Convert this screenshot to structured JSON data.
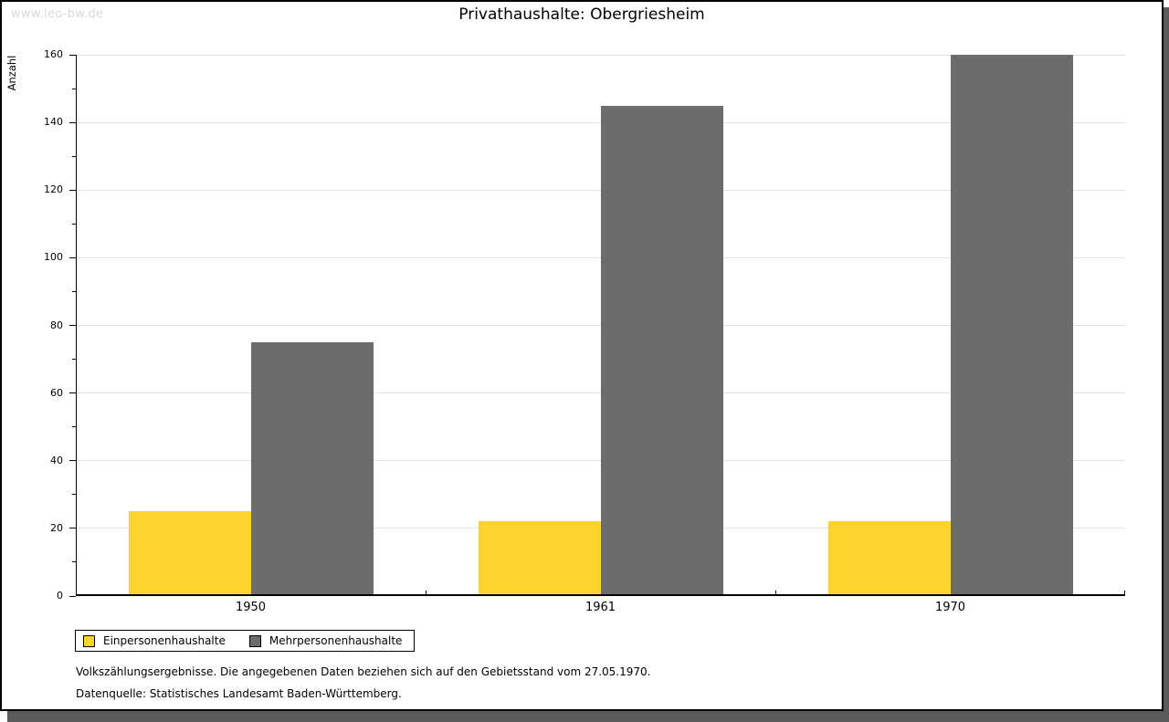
{
  "watermark": "www.leo-bw.de",
  "chart_data": {
    "type": "bar",
    "title": "Privathaushalte: Obergriesheim",
    "ylabel": "Anzahl",
    "xlabel": "",
    "categories": [
      "1950",
      "1961",
      "1970"
    ],
    "series": [
      {
        "name": "Einpersonenhaushalte",
        "color": "#FCD22C",
        "values": [
          25,
          22,
          22
        ]
      },
      {
        "name": "Mehrpersonenhaushalte",
        "color": "#6C6C6C",
        "values": [
          75,
          145,
          160
        ]
      }
    ],
    "ylim": [
      0,
      160
    ],
    "y_major_step": 20,
    "y_minor_step": 10,
    "grid": "horizontal-major",
    "legend_position": "bottom-left",
    "colors": {
      "gridline": "#E3E3E3",
      "axis": "#000000",
      "background": "#FFFFFF"
    }
  },
  "footer": {
    "line1": "Volkszählungsergebnisse. Die angegebenen Daten beziehen sich auf den Gebietsstand vom 27.05.1970.",
    "line2": "Datenquelle: Statistisches Landesamt Baden-Württemberg."
  }
}
